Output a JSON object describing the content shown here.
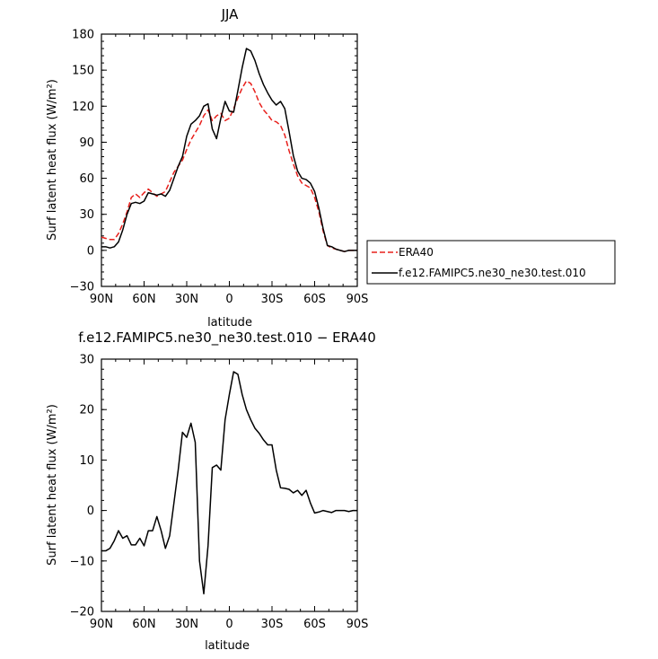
{
  "chart_data": [
    {
      "type": "line",
      "title": "JJA",
      "xlabel": "latitude",
      "ylabel": "Surf latent heat flux (W/m²)",
      "ylim": [
        -30,
        180
      ],
      "xlim": [
        90,
        -90
      ],
      "xticks": [
        90,
        60,
        30,
        0,
        -30,
        -60,
        -90
      ],
      "xtick_labels": [
        "90N",
        "60N",
        "30N",
        "0",
        "30S",
        "60S",
        "90S"
      ],
      "yticks": [
        -30,
        0,
        30,
        60,
        90,
        120,
        150,
        180
      ],
      "ytick_labels": [
        "−30",
        "0",
        "30",
        "60",
        "90",
        "120",
        "150",
        "180"
      ],
      "legend_position": "right",
      "series": [
        {
          "name": "ERA40",
          "color": "#e8201c",
          "dash": "dashed",
          "x": [
            90,
            87,
            84,
            81,
            78,
            75,
            72,
            69,
            66,
            63,
            60,
            57,
            54,
            51,
            48,
            45,
            42,
            39,
            36,
            33,
            30,
            27,
            24,
            21,
            18,
            15,
            12,
            9,
            6,
            3,
            0,
            -3,
            -6,
            -9,
            -12,
            -15,
            -18,
            -21,
            -24,
            -27,
            -30,
            -33,
            -36,
            -39,
            -42,
            -45,
            -48,
            -51,
            -54,
            -57,
            -60,
            -63,
            -66,
            -69,
            -72,
            -75,
            -78,
            -81,
            -84,
            -87,
            -90
          ],
          "y": [
            11,
            10,
            9,
            9,
            14,
            22,
            32,
            44,
            47,
            44,
            48,
            51,
            48,
            45,
            47,
            49,
            57,
            65,
            70,
            75,
            84,
            92,
            98,
            104,
            112,
            117,
            108,
            112,
            114,
            108,
            110,
            118,
            127,
            135,
            141,
            139,
            132,
            123,
            117,
            113,
            108,
            107,
            104,
            96,
            83,
            72,
            62,
            56,
            54,
            52,
            44,
            32,
            16,
            4,
            2,
            1,
            0,
            -1,
            0,
            0,
            0
          ]
        },
        {
          "name": "f.e12.FAMIPC5.ne30_ne30.test.010",
          "color": "#000000",
          "dash": "solid",
          "x": [
            90,
            87,
            84,
            81,
            78,
            75,
            72,
            69,
            66,
            63,
            60,
            57,
            54,
            51,
            48,
            45,
            42,
            39,
            36,
            33,
            30,
            27,
            24,
            21,
            18,
            15,
            12,
            9,
            6,
            3,
            0,
            -3,
            -6,
            -9,
            -12,
            -15,
            -18,
            -21,
            -24,
            -27,
            -30,
            -33,
            -36,
            -39,
            -42,
            -45,
            -48,
            -51,
            -54,
            -57,
            -60,
            -63,
            -66,
            -69,
            -72,
            -75,
            -78,
            -81,
            -84,
            -87,
            -90
          ],
          "y": [
            3,
            3,
            2,
            3,
            7,
            17,
            30,
            39,
            40,
            39,
            41,
            48,
            47,
            46,
            47,
            45,
            50,
            60,
            70,
            78,
            95,
            105,
            108,
            112,
            120,
            122,
            101,
            93,
            110,
            124,
            116,
            115,
            133,
            152,
            168,
            166,
            158,
            147,
            138,
            131,
            125,
            121,
            124,
            118,
            99,
            79,
            66,
            60,
            59,
            56,
            49,
            35,
            18,
            4,
            3,
            1,
            0,
            -1,
            0,
            0,
            0
          ]
        }
      ]
    },
    {
      "type": "line",
      "title": "f.e12.FAMIPC5.ne30_ne30.test.010 − ERA40",
      "xlabel": "latitude",
      "ylabel": "Surf latent heat flux (W/m²)",
      "ylim": [
        -20,
        30
      ],
      "xlim": [
        90,
        -90
      ],
      "xticks": [
        90,
        60,
        30,
        0,
        -30,
        -60,
        -90
      ],
      "xtick_labels": [
        "90N",
        "60N",
        "30N",
        "0",
        "30S",
        "60S",
        "90S"
      ],
      "yticks": [
        -20,
        -10,
        0,
        10,
        20,
        30
      ],
      "ytick_labels": [
        "−20",
        "−10",
        "0",
        "10",
        "20",
        "30"
      ],
      "series": [
        {
          "name": "",
          "color": "#000000",
          "dash": "solid",
          "x": [
            90,
            87,
            84,
            81,
            78,
            75,
            72,
            69,
            66,
            63,
            60,
            57,
            54,
            51,
            48,
            45,
            42,
            39,
            36,
            33,
            30,
            27,
            24,
            21,
            18,
            15,
            12,
            9,
            6,
            3,
            0,
            -3,
            -6,
            -9,
            -12,
            -15,
            -18,
            -21,
            -24,
            -27,
            -30,
            -33,
            -36,
            -39,
            -42,
            -45,
            -48,
            -51,
            -54,
            -57,
            -60,
            -63,
            -66,
            -69,
            -72,
            -75,
            -78,
            -81,
            -84,
            -87,
            -90
          ],
          "y": [
            -8,
            -8,
            -7.5,
            -6,
            -4,
            -5.5,
            -5,
            -6.8,
            -6.8,
            -5.5,
            -7,
            -4,
            -4,
            -1.2,
            -4,
            -7.5,
            -5,
            1.5,
            8,
            15.5,
            14.5,
            17.3,
            13.5,
            -10,
            -16.5,
            -7,
            8.5,
            9,
            8,
            18,
            23,
            27.5,
            27,
            23,
            20,
            18,
            16.3,
            15.3,
            14,
            13,
            13,
            8,
            4.5,
            4.4,
            4.2,
            3.5,
            4,
            3,
            4,
            1.5,
            -0.5,
            -0.3,
            0,
            -0.2,
            -0.4,
            0,
            0,
            0,
            -0.2,
            0,
            0
          ]
        }
      ]
    }
  ]
}
